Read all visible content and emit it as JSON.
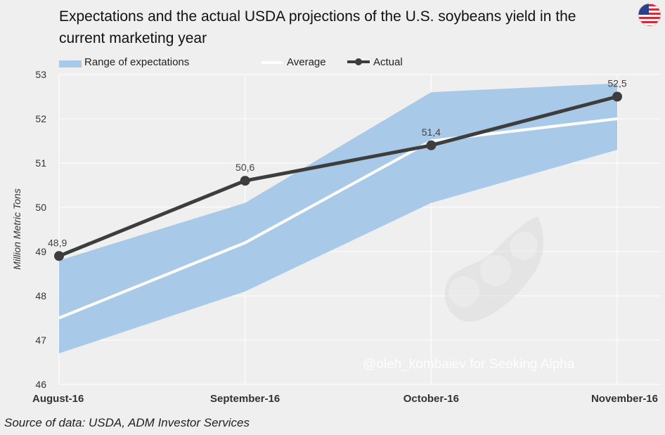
{
  "title": "Expectations and the actual USDA projections of the U.S. soybeans yield in the current marketing year",
  "source": "Source of data: USDA, ADM Investor Services",
  "watermark": "@oleh_kombaiev for Seeking Alpha",
  "flag_icon": "us-flag-icon",
  "colors": {
    "range": "#a9c9e8",
    "average": "#ffffff",
    "actual": "#3d3d3d",
    "background": "#efefef"
  },
  "chart_data": {
    "type": "line",
    "categories": [
      "August-16",
      "September-16",
      "October-16",
      "November-16"
    ],
    "ylabel": "Million Metric Tons",
    "xlabel": "",
    "ylim": [
      46,
      53
    ],
    "yticks": [
      46,
      47,
      48,
      49,
      50,
      51,
      52,
      53
    ],
    "grid": true,
    "legend": "top",
    "series": [
      {
        "name": "Range of expectations",
        "type": "area-range",
        "low": [
          46.7,
          48.1,
          50.1,
          51.3
        ],
        "high": [
          48.8,
          50.1,
          52.6,
          52.8
        ]
      },
      {
        "name": "Average",
        "values": [
          47.5,
          49.2,
          51.5,
          52.0
        ]
      },
      {
        "name": "Actual",
        "values": [
          48.9,
          50.6,
          51.4,
          52.5
        ],
        "labels": [
          "48,9",
          "50,6",
          "51,4",
          "52,5"
        ]
      }
    ]
  }
}
